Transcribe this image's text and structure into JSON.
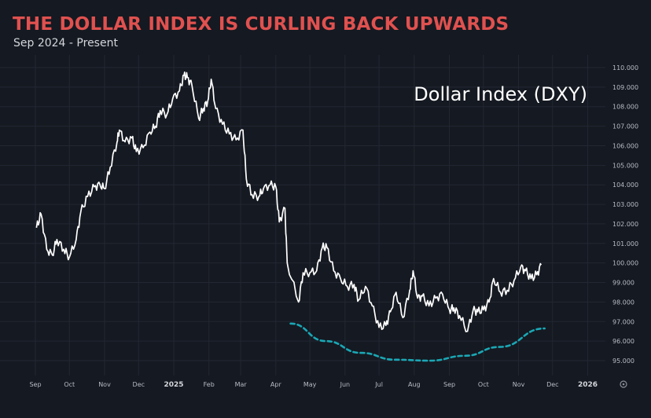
{
  "header": {
    "title": "THE DOLLAR INDEX IS CURLING BACK UPWARDS",
    "subtitle": "Sep 2024 - Present"
  },
  "colors": {
    "background": "#151921",
    "title": "#e0514f",
    "line": "#ffffff",
    "trend_curve": "#1aa7b5",
    "axis_text": "#b8bcc4",
    "grid": "#222733"
  },
  "chart_data": {
    "type": "line",
    "annotation": "Dollar Index (DXY)",
    "ylim": [
      94.6,
      110.3
    ],
    "yticks": [
      "95.000",
      "96.000",
      "97.000",
      "98.000",
      "99.000",
      "100.000",
      "101.000",
      "102.000",
      "103.000",
      "104.000",
      "105.000",
      "106.000",
      "107.000",
      "108.000",
      "109.000",
      "110.000"
    ],
    "xticks": [
      "Sep",
      "Oct",
      "Nov",
      "Dec",
      "2025",
      "Feb",
      "Mar",
      "Apr",
      "May",
      "Jun",
      "Jul",
      "Aug",
      "Sep",
      "Oct",
      "Nov",
      "Dec",
      "2026"
    ],
    "bold_xticks": [
      "2025",
      "2026"
    ],
    "grid": true,
    "axis_settings_icon": "settings-icon",
    "series": [
      {
        "color": "#ffffff",
        "x": [
          "2024-09-02",
          "2024-09-06",
          "2024-09-11",
          "2024-09-16",
          "2024-09-20",
          "2024-09-26",
          "2024-10-01",
          "2024-10-07",
          "2024-10-11",
          "2024-10-17",
          "2024-10-23",
          "2024-10-28",
          "2024-11-01",
          "2024-11-06",
          "2024-11-12",
          "2024-11-14",
          "2024-11-19",
          "2024-11-25",
          "2024-11-29",
          "2024-12-05",
          "2024-12-11",
          "2024-12-16",
          "2024-12-20",
          "2024-12-26",
          "2024-12-31",
          "2025-01-06",
          "2025-01-10",
          "2025-01-13",
          "2025-01-17",
          "2025-01-23",
          "2025-01-27",
          "2025-01-31",
          "2025-02-03",
          "2025-02-07",
          "2025-02-13",
          "2025-02-19",
          "2025-02-25",
          "2025-03-03",
          "2025-03-06",
          "2025-03-11",
          "2025-03-17",
          "2025-03-21",
          "2025-03-27",
          "2025-04-01",
          "2025-04-04",
          "2025-04-09",
          "2025-04-11",
          "2025-04-21",
          "2025-04-25",
          "2025-05-01",
          "2025-05-07",
          "2025-05-12",
          "2025-05-16",
          "2025-05-22",
          "2025-05-28",
          "2025-06-03",
          "2025-06-09",
          "2025-06-13",
          "2025-06-19",
          "2025-06-25",
          "2025-07-01",
          "2025-07-07",
          "2025-07-11",
          "2025-07-16",
          "2025-07-22",
          "2025-07-28",
          "2025-07-31",
          "2025-08-04",
          "2025-08-08",
          "2025-08-14",
          "2025-08-20",
          "2025-08-26",
          "2025-09-01",
          "2025-09-05",
          "2025-09-10",
          "2025-09-17",
          "2025-09-22",
          "2025-09-26",
          "2025-10-01",
          "2025-10-06",
          "2025-10-10",
          "2025-10-16",
          "2025-10-22",
          "2025-10-28",
          "2025-11-03",
          "2025-11-07",
          "2025-11-12",
          "2025-11-17",
          "2025-11-21"
        ],
        "values": [
          101.8,
          102.5,
          100.7,
          100.4,
          101.2,
          100.7,
          100.3,
          101.2,
          102.6,
          103.4,
          103.9,
          104.0,
          103.8,
          104.9,
          106.2,
          106.8,
          106.2,
          106.4,
          105.7,
          105.9,
          106.7,
          107.0,
          107.8,
          107.6,
          108.4,
          108.8,
          109.6,
          109.5,
          109.1,
          107.4,
          107.9,
          108.3,
          109.4,
          107.9,
          107.1,
          106.6,
          106.3,
          106.8,
          104.3,
          103.5,
          103.4,
          103.8,
          104.0,
          103.9,
          102.1,
          102.8,
          100.0,
          98.0,
          99.5,
          99.5,
          99.6,
          100.8,
          100.8,
          99.6,
          99.2,
          98.8,
          98.9,
          98.1,
          98.8,
          97.8,
          96.7,
          96.8,
          97.5,
          98.5,
          97.2,
          98.6,
          99.6,
          98.2,
          98.3,
          97.8,
          98.2,
          98.4,
          97.6,
          97.7,
          97.3,
          96.5,
          97.6,
          97.5,
          97.6,
          98.0,
          99.2,
          98.5,
          98.6,
          99.1,
          99.8,
          99.6,
          99.2,
          99.4,
          99.9
        ]
      }
    ],
    "trend_curve": {
      "color": "#1aa7b5",
      "style": "dashed",
      "x": [
        "2025-04-14",
        "2025-05-15",
        "2025-06-15",
        "2025-07-15",
        "2025-08-15",
        "2025-09-15",
        "2025-10-15",
        "2025-11-24"
      ],
      "values": [
        96.9,
        96.0,
        95.4,
        95.05,
        95.0,
        95.25,
        95.7,
        96.65
      ]
    }
  }
}
